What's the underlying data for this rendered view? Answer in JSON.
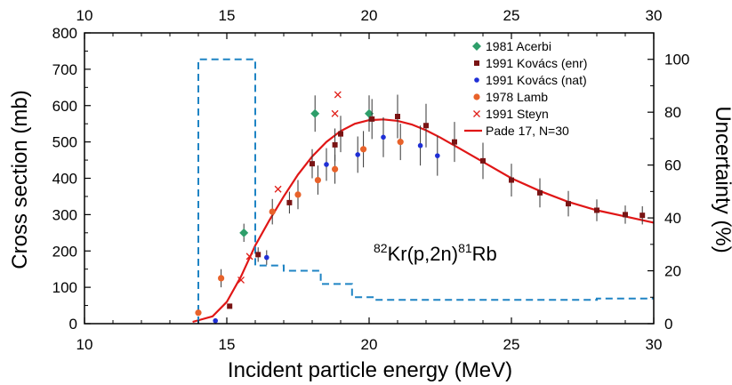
{
  "chart_data": {
    "type": "scatter",
    "title": "",
    "annotation": {
      "pre": "82",
      "a": "Kr(p,2n)",
      "mid": "81",
      "b": "Rb"
    },
    "xlabel": "Incident particle energy (MeV)",
    "ylabel": "Cross section (mb)",
    "y2label": "Uncertainty (%)",
    "xlim": [
      10,
      30
    ],
    "ylim": [
      0,
      800
    ],
    "y2lim": [
      0,
      110
    ],
    "xticks": [
      "10",
      "15",
      "20",
      "25",
      "30"
    ],
    "yticks": [
      "0",
      "100",
      "200",
      "300",
      "400",
      "500",
      "600",
      "700",
      "800"
    ],
    "y2ticks": [
      "0",
      "20",
      "40",
      "60",
      "80",
      "100"
    ],
    "legend_position": "top-right",
    "series": [
      {
        "name": "1981 Acerbi",
        "kind": "diamond",
        "color": "#2e9e6a",
        "points": [
          [
            15.6,
            250,
            25
          ],
          [
            18.1,
            578,
            50
          ],
          [
            20.0,
            578,
            50
          ]
        ]
      },
      {
        "name": "1991 Kovács (enr)",
        "kind": "square",
        "color": "#7a1414",
        "points": [
          [
            15.1,
            48,
            5
          ],
          [
            16.1,
            190,
            20
          ],
          [
            17.2,
            333,
            30
          ],
          [
            18.0,
            440,
            40
          ],
          [
            18.8,
            492,
            45
          ],
          [
            19.0,
            522,
            50
          ],
          [
            20.1,
            563,
            55
          ],
          [
            21.0,
            570,
            60
          ],
          [
            22.0,
            545,
            60
          ],
          [
            23.0,
            500,
            55
          ],
          [
            24.0,
            448,
            50
          ],
          [
            25.0,
            395,
            45
          ],
          [
            26.0,
            360,
            40
          ],
          [
            27.0,
            330,
            35
          ],
          [
            28.0,
            312,
            30
          ],
          [
            29.0,
            300,
            25
          ],
          [
            29.6,
            298,
            25
          ]
        ]
      },
      {
        "name": "1991 Kovács (nat)",
        "kind": "circle-small",
        "color": "#1f2fd6",
        "points": [
          [
            14.6,
            8,
            0
          ],
          [
            16.4,
            182,
            20
          ],
          [
            18.5,
            438,
            45
          ],
          [
            19.6,
            465,
            50
          ],
          [
            20.5,
            513,
            55
          ],
          [
            21.8,
            490,
            55
          ],
          [
            22.4,
            462,
            55
          ]
        ]
      },
      {
        "name": "1978 Lamb",
        "kind": "circle",
        "color": "#e8622a",
        "points": [
          [
            14.0,
            30,
            5
          ],
          [
            14.8,
            125,
            25
          ],
          [
            16.6,
            308,
            35
          ],
          [
            17.5,
            355,
            40
          ],
          [
            18.2,
            395,
            40
          ],
          [
            18.8,
            425,
            40
          ],
          [
            19.8,
            480,
            50
          ],
          [
            21.1,
            500,
            50
          ]
        ]
      },
      {
        "name": "1991 Steyn",
        "kind": "x",
        "color": "#e0201a",
        "points": [
          [
            15.5,
            120
          ],
          [
            15.8,
            185
          ],
          [
            16.8,
            370
          ],
          [
            18.8,
            578
          ],
          [
            18.9,
            630
          ]
        ]
      }
    ],
    "fit": {
      "name": "Pade 17, N=30",
      "color": "#e01616",
      "x": [
        13.8,
        14.5,
        15.0,
        15.5,
        16.0,
        16.5,
        17.0,
        17.5,
        18.0,
        18.5,
        19.0,
        19.5,
        20.0,
        20.5,
        21.0,
        21.5,
        22.0,
        22.5,
        23.0,
        24.0,
        25.0,
        26.0,
        27.0,
        28.0,
        29.0,
        30.0
      ],
      "y": [
        5,
        20,
        60,
        130,
        215,
        285,
        350,
        410,
        460,
        500,
        530,
        550,
        560,
        562,
        558,
        548,
        532,
        512,
        490,
        445,
        400,
        365,
        335,
        312,
        295,
        278
      ]
    },
    "uncertainty": {
      "color": "#1f84c4",
      "steps": [
        [
          14.0,
          0
        ],
        [
          14.0,
          100
        ],
        [
          16.0,
          100
        ],
        [
          16.0,
          22
        ],
        [
          17.0,
          22
        ],
        [
          17.0,
          20
        ],
        [
          18.3,
          20
        ],
        [
          18.3,
          15
        ],
        [
          19.4,
          15
        ],
        [
          19.4,
          10
        ],
        [
          20.2,
          10
        ],
        [
          20.2,
          9
        ],
        [
          28.0,
          9
        ],
        [
          28.0,
          9.5
        ],
        [
          30.0,
          9.5
        ]
      ]
    }
  }
}
